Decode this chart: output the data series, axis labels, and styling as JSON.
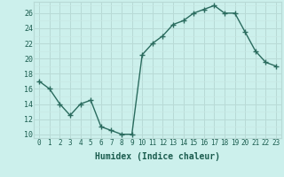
{
  "x": [
    0,
    1,
    2,
    3,
    4,
    5,
    6,
    7,
    8,
    9,
    10,
    11,
    12,
    13,
    14,
    15,
    16,
    17,
    18,
    19,
    20,
    21,
    22,
    23
  ],
  "y": [
    17,
    16,
    14,
    12.5,
    14,
    14.5,
    11,
    10.5,
    10,
    10,
    20.5,
    22,
    23,
    24.5,
    25,
    26,
    26.5,
    27,
    26,
    26,
    23.5,
    21,
    19.5,
    19
  ],
  "xlabel": "Humidex (Indice chaleur)",
  "xlim": [
    -0.5,
    23.5
  ],
  "ylim": [
    9.5,
    27.5
  ],
  "yticks": [
    10,
    12,
    14,
    16,
    18,
    20,
    22,
    24,
    26
  ],
  "xticks": [
    0,
    1,
    2,
    3,
    4,
    5,
    6,
    7,
    8,
    9,
    10,
    11,
    12,
    13,
    14,
    15,
    16,
    17,
    18,
    19,
    20,
    21,
    22,
    23
  ],
  "line_color": "#2A6B5E",
  "marker": "+",
  "marker_size": 4,
  "marker_lw": 1.0,
  "line_width": 1.0,
  "bg_color": "#CCF0EC",
  "grid_major_color": "#B8DAD6",
  "grid_minor_color": "#C8E8E4",
  "tick_label_color": "#1A5C4E",
  "xlabel_color": "#1A5C4E",
  "xlabel_fontsize": 7,
  "tick_fontsize": 5.5
}
